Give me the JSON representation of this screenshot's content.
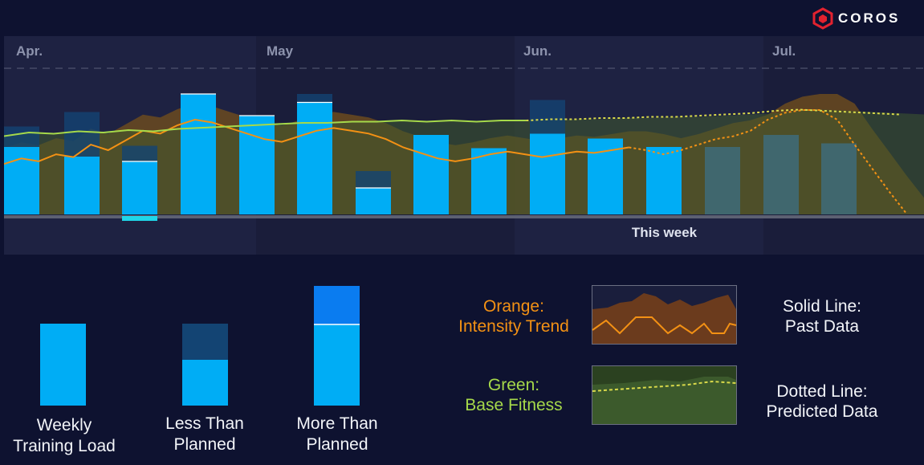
{
  "brand": {
    "name": "COROS",
    "accent_color": "#e3222f"
  },
  "timeline": {
    "months": [
      "Apr.",
      "May",
      "Jun.",
      "Jul."
    ],
    "this_week_label": "This week"
  },
  "colors": {
    "bar_actual": "#00adf5",
    "bar_planned": "#0a7cf0",
    "bar_shortfall": "#134473",
    "intensity": "#f39114",
    "base_fitness": "#a6d94a",
    "selected_week": "#1fd6e8"
  },
  "chart_data": {
    "type": "bar",
    "weeks": 20,
    "this_week_index": 11,
    "selected_week_index": 2,
    "weekly_training_load": [
      0.56,
      0.48,
      0.44,
      1.0,
      0.82,
      0.93,
      0.22,
      0.66,
      0.55,
      0.67,
      0.63,
      0.56,
      0.56,
      0.66,
      0.59,
      0.72,
      0.68,
      0.92,
      0.73,
      0.55
    ],
    "planned_load": [
      0.73,
      0.85,
      0.57,
      1.0,
      0.82,
      1.0,
      0.36,
      0.0,
      0.0,
      0.95,
      0.0,
      0.0,
      0.56,
      0.0,
      0.66,
      0.0,
      0.0,
      1.0,
      0.0,
      0.0
    ],
    "week_status": [
      "less",
      "less",
      "more",
      "more",
      "more",
      "more",
      "more",
      "actual",
      "actual",
      "less",
      "actual",
      "actual",
      "predicted",
      "predicted",
      "predicted",
      "predicted",
      "predicted",
      "predicted",
      "predicted",
      "predicted"
    ],
    "series": [
      {
        "name": "Intensity Trend",
        "past": [
          0.48,
          0.52,
          0.5,
          0.55,
          0.53,
          0.62,
          0.58,
          0.65,
          0.72,
          0.7,
          0.76,
          0.8,
          0.78,
          0.74,
          0.7,
          0.66,
          0.64,
          0.68,
          0.72,
          0.74,
          0.72,
          0.7,
          0.66,
          0.6,
          0.56,
          0.52,
          0.5,
          0.52,
          0.55,
          0.57,
          0.55,
          0.53,
          0.55,
          0.57,
          0.56,
          0.58,
          0.6
        ],
        "predicted": [
          0.6,
          0.58,
          0.55,
          0.58,
          0.62,
          0.66,
          0.68,
          0.72,
          0.8,
          0.85,
          0.9,
          0.88,
          0.8,
          0.62,
          0.45,
          0.28,
          0.12
        ]
      },
      {
        "name": "Base Fitness",
        "past": [
          0.65,
          0.68,
          0.67,
          0.69,
          0.68,
          0.7,
          0.69,
          0.71,
          0.72,
          0.73,
          0.74,
          0.75,
          0.76,
          0.76,
          0.77,
          0.77,
          0.78,
          0.77,
          0.78,
          0.77,
          0.78,
          0.78
        ],
        "predicted": [
          0.78,
          0.79,
          0.79,
          0.8,
          0.8,
          0.81,
          0.81,
          0.82,
          0.83,
          0.84,
          0.86,
          0.87,
          0.86,
          0.85,
          0.84,
          0.83
        ]
      }
    ]
  },
  "legend": {
    "weekly_training_load": "Weekly\nTraining Load",
    "less_than_planned": "Less Than\nPlanned",
    "more_than_planned": "More Than\nPlanned",
    "orange_label": "Orange:\nIntensity Trend",
    "green_label": "Green:\nBase Fitness",
    "solid_line": "Solid Line:\nPast Data",
    "dotted_line": "Dotted Line:\nPredicted Data"
  }
}
